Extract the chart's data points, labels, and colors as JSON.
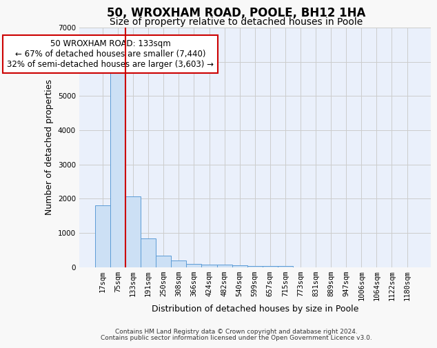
{
  "title1": "50, WROXHAM ROAD, POOLE, BH12 1HA",
  "title2": "Size of property relative to detached houses in Poole",
  "xlabel": "Distribution of detached houses by size in Poole",
  "ylabel": "Number of detached properties",
  "bar_labels": [
    "17sqm",
    "75sqm",
    "133sqm",
    "191sqm",
    "250sqm",
    "308sqm",
    "366sqm",
    "424sqm",
    "482sqm",
    "540sqm",
    "599sqm",
    "657sqm",
    "715sqm",
    "773sqm",
    "831sqm",
    "889sqm",
    "947sqm",
    "1006sqm",
    "1064sqm",
    "1122sqm",
    "1180sqm"
  ],
  "bar_values": [
    1800,
    5700,
    2060,
    840,
    330,
    185,
    100,
    80,
    65,
    50,
    40,
    35,
    30,
    0,
    0,
    0,
    0,
    0,
    0,
    0,
    0
  ],
  "bar_color": "#cce0f5",
  "bar_edge_color": "#5b9bd5",
  "grid_color": "#cccccc",
  "background_color": "#eaf0fb",
  "red_line_index": 2,
  "annotation_text": "50 WROXHAM ROAD: 133sqm\n← 67% of detached houses are smaller (7,440)\n32% of semi-detached houses are larger (3,603) →",
  "annotation_box_color": "#ffffff",
  "annotation_box_edge": "#cc0000",
  "ylim": [
    0,
    7000
  ],
  "yticks": [
    0,
    1000,
    2000,
    3000,
    4000,
    5000,
    6000,
    7000
  ],
  "footer_line1": "Contains HM Land Registry data © Crown copyright and database right 2024.",
  "footer_line2": "Contains public sector information licensed under the Open Government Licence v3.0.",
  "title1_fontsize": 12,
  "title2_fontsize": 10,
  "xlabel_fontsize": 9,
  "ylabel_fontsize": 9,
  "annotation_fontsize": 8.5,
  "tick_fontsize": 7.5
}
